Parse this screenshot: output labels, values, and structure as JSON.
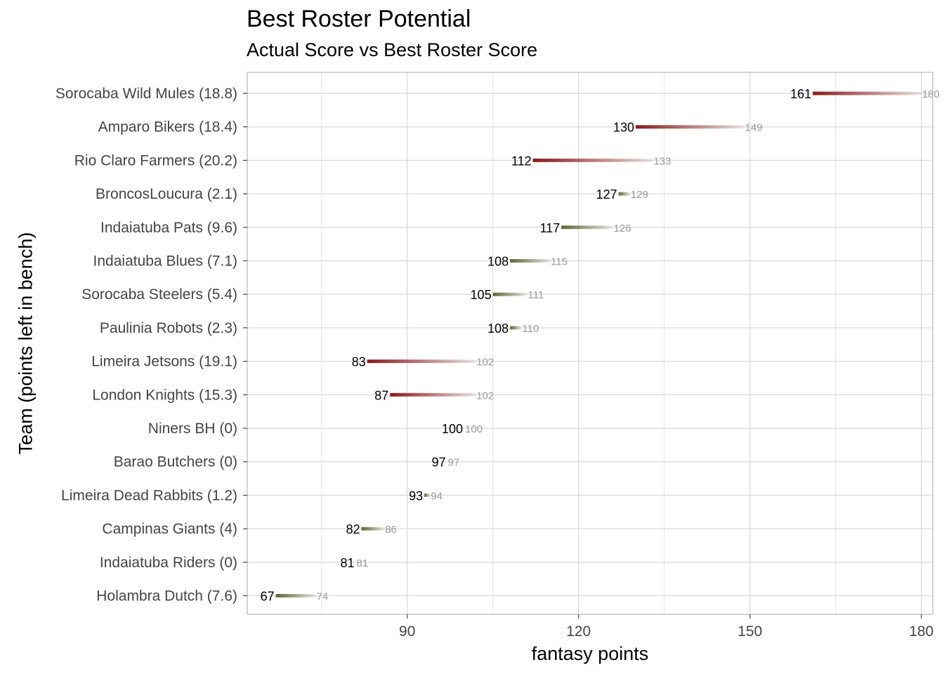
{
  "chart_data": {
    "type": "dumbbell",
    "title": "Best Roster Potential",
    "subtitle": "Actual Score vs Best Roster Score",
    "xlabel": "fantasy points",
    "ylabel": "Team (points left in bench)",
    "xlim": [
      62,
      182
    ],
    "xticks": [
      90,
      120,
      150,
      180
    ],
    "grid": true,
    "colors": {
      "high_loss": "#8b1a1a",
      "low_loss": "#5a6a35",
      "grid": "#dddddd",
      "panel_border": "#aaaaaa"
    },
    "teams": [
      {
        "label": "Sorocaba Wild Mules (18.8)",
        "actual": 161,
        "best": 180,
        "high_loss": true
      },
      {
        "label": "Amparo Bikers (18.4)",
        "actual": 130,
        "best": 149,
        "high_loss": true
      },
      {
        "label": "Rio Claro Farmers (20.2)",
        "actual": 112,
        "best": 133,
        "high_loss": true
      },
      {
        "label": "BroncosLoucura (2.1)",
        "actual": 127,
        "best": 129,
        "high_loss": false
      },
      {
        "label": "Indaiatuba Pats (9.6)",
        "actual": 117,
        "best": 126,
        "high_loss": false
      },
      {
        "label": "Indaiatuba Blues (7.1)",
        "actual": 108,
        "best": 115,
        "high_loss": false
      },
      {
        "label": "Sorocaba Steelers (5.4)",
        "actual": 105,
        "best": 111,
        "high_loss": false
      },
      {
        "label": "Paulinia Robots (2.3)",
        "actual": 108,
        "best": 110,
        "high_loss": false
      },
      {
        "label": "Limeira Jetsons (19.1)",
        "actual": 83,
        "best": 102,
        "high_loss": true
      },
      {
        "label": "London Knights (15.3)",
        "actual": 87,
        "best": 102,
        "high_loss": true
      },
      {
        "label": "Niners BH (0)",
        "actual": 100,
        "best": 100,
        "high_loss": false
      },
      {
        "label": "Barao Butchers (0)",
        "actual": 97,
        "best": 97,
        "high_loss": false
      },
      {
        "label": "Limeira Dead Rabbits (1.2)",
        "actual": 93,
        "best": 94,
        "high_loss": false
      },
      {
        "label": "Campinas Giants (4)",
        "actual": 82,
        "best": 86,
        "high_loss": false
      },
      {
        "label": "Indaiatuba Riders (0)",
        "actual": 81,
        "best": 81,
        "high_loss": false
      },
      {
        "label": "Holambra Dutch (7.6)",
        "actual": 67,
        "best": 74,
        "high_loss": false
      }
    ]
  }
}
